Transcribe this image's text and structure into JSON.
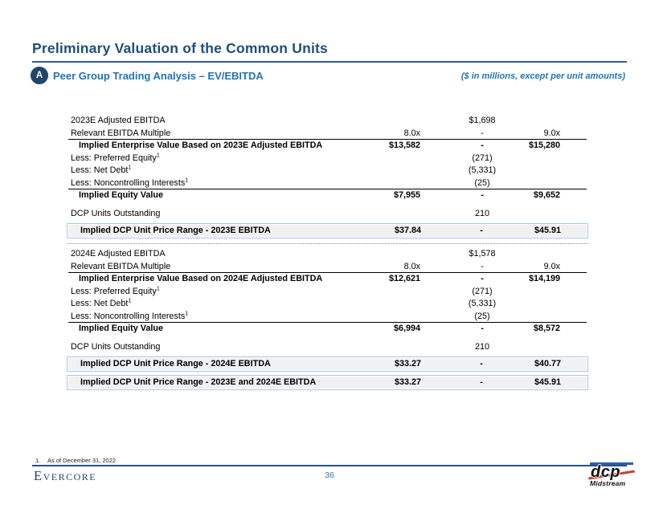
{
  "header": {
    "title": "Preliminary Valuation of the Common Units",
    "badge": "A",
    "section_title": "Peer Group Trading Analysis – EV/EBITDA",
    "units_note": "($ in millions, except per unit amounts)"
  },
  "colors": {
    "navy": "#1F4568",
    "title_blue": "#1F4E79",
    "accent_blue": "#2173B8",
    "box_border": "#A9C6E8",
    "box_fill": "#F1F1F1",
    "dcp_red": "#D23B34",
    "dcp_blue": "#2B5EA7"
  },
  "table": {
    "rows": [
      {
        "type": "plain",
        "label": "2023E Adjusted EBITDA",
        "mid": "$1,698"
      },
      {
        "type": "rule",
        "label": "Relevant EBITDA Multiple",
        "low": "8.0x",
        "mid": "-",
        "high": "9.0x"
      },
      {
        "type": "bold",
        "label": "Implied Enterprise Value Based on 2023E Adjusted EBITDA",
        "low": "$13,582",
        "mid": "-",
        "high": "$15,280"
      },
      {
        "type": "plain",
        "label": "Less: Preferred Equity",
        "sup": "1",
        "mid": "(271)"
      },
      {
        "type": "plain",
        "label": "Less: Net Debt",
        "sup": "1",
        "mid": "(5,331)"
      },
      {
        "type": "rule",
        "label": "Less: Noncontrolling Interests",
        "sup": "1",
        "mid": "(25)"
      },
      {
        "type": "bold",
        "label": "Implied Equity Value",
        "low": "$7,955",
        "mid": "-",
        "high": "$9,652"
      },
      {
        "type": "plain gap",
        "label": "DCP Units Outstanding",
        "mid": "210"
      },
      {
        "type": "boxed",
        "label": "Implied DCP Unit Price Range - 2023E EBITDA",
        "low": "$37.84",
        "mid": "-",
        "high": "$45.91"
      },
      {
        "type": "divider"
      },
      {
        "type": "plain",
        "label": "2024E Adjusted EBITDA",
        "mid": "$1,578"
      },
      {
        "type": "rule",
        "label": "Relevant EBITDA Multiple",
        "low": "8.0x",
        "mid": "-",
        "high": "9.0x"
      },
      {
        "type": "bold",
        "label": "Implied Enterprise Value Based on 2024E Adjusted EBITDA",
        "low": "$12,621",
        "mid": "-",
        "high": "$14,199"
      },
      {
        "type": "plain",
        "label": "Less: Preferred Equity",
        "sup": "1",
        "mid": "(271)"
      },
      {
        "type": "plain",
        "label": "Less: Net Debt",
        "sup": "1",
        "mid": "(5,331)"
      },
      {
        "type": "rule",
        "label": "Less: Noncontrolling Interests",
        "sup": "1",
        "mid": "(25)"
      },
      {
        "type": "bold",
        "label": "Implied Equity Value",
        "low": "$6,994",
        "mid": "-",
        "high": "$8,572"
      },
      {
        "type": "plain gap",
        "label": "DCP Units Outstanding",
        "mid": "210"
      },
      {
        "type": "boxed",
        "label": "Implied DCP Unit Price Range - 2024E EBITDA",
        "low": "$33.27",
        "mid": "-",
        "high": "$40.77"
      },
      {
        "type": "boxed",
        "label": "Implied DCP Unit Price Range - 2023E and 2024E EBITDA",
        "low": "$33.27",
        "mid": "-",
        "high": "$45.91"
      }
    ]
  },
  "footer": {
    "footnote_marker": "1.",
    "footnote_text": "As of December 31, 2022",
    "brand_left": "Evercore",
    "page_number": "36",
    "brand_right_name": "dcp",
    "brand_right_sub": "Midstream"
  }
}
